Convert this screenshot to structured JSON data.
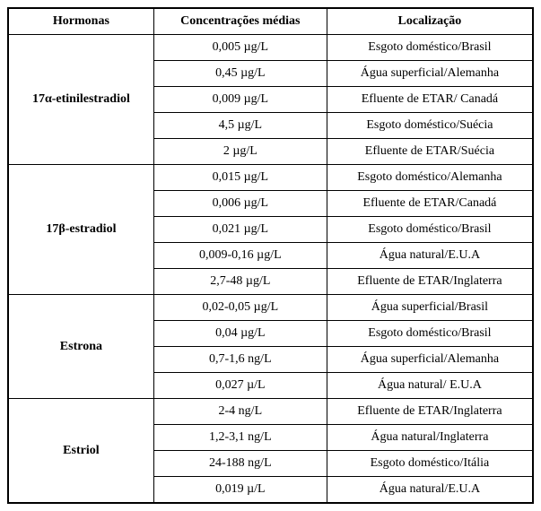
{
  "table": {
    "headers": {
      "hormone": "Hormonas",
      "concentration": "Concentrações médias",
      "location": "Localização"
    },
    "groups": [
      {
        "hormone": "17α-etinilestradiol",
        "rows": [
          {
            "concentration": "0,005 µg/L",
            "location": "Esgoto doméstico/Brasil"
          },
          {
            "concentration": "0,45 µg/L",
            "location": "Água superficial/Alemanha"
          },
          {
            "concentration": "0,009 µg/L",
            "location": "Efluente de ETAR/ Canadá"
          },
          {
            "concentration": "4,5 µg/L",
            "location": "Esgoto doméstico/Suécia"
          },
          {
            "concentration": "2 µg/L",
            "location": "Efluente de ETAR/Suécia"
          }
        ]
      },
      {
        "hormone": "17β-estradiol",
        "rows": [
          {
            "concentration": "0,015 µg/L",
            "location": "Esgoto doméstico/Alemanha"
          },
          {
            "concentration": "0,006 µg/L",
            "location": "Efluente de ETAR/Canadá"
          },
          {
            "concentration": "0,021 µg/L",
            "location": "Esgoto doméstico/Brasil"
          },
          {
            "concentration": "0,009-0,16 µg/L",
            "location": "Água natural/E.U.A"
          },
          {
            "concentration": "2,7-48 µg/L",
            "location": "Efluente de ETAR/Inglaterra"
          }
        ]
      },
      {
        "hormone": "Estrona",
        "rows": [
          {
            "concentration": "0,02-0,05 µg/L",
            "location": "Água superficial/Brasil"
          },
          {
            "concentration": "0,04 µg/L",
            "location": "Esgoto doméstico/Brasil"
          },
          {
            "concentration": "0,7-1,6 ng/L",
            "location": "Água superficial/Alemanha"
          },
          {
            "concentration": "0,027 µ/L",
            "location": "Água natural/ E.U.A"
          }
        ]
      },
      {
        "hormone": "Estriol",
        "rows": [
          {
            "concentration": "2-4 ng/L",
            "location": "Efluente de ETAR/Inglaterra"
          },
          {
            "concentration": "1,2-3,1 ng/L",
            "location": "Água natural/Inglaterra"
          },
          {
            "concentration": "24-188 ng/L",
            "location": "Esgoto doméstico/Itália"
          },
          {
            "concentration": "0,019 µ/L",
            "location": "Água natural/E.U.A"
          }
        ]
      }
    ],
    "styling": {
      "font_family": "Times New Roman",
      "header_fontsize": 14,
      "cell_fontsize": 14,
      "border_color": "#000000",
      "outer_border_width": 2,
      "inner_border_width": 1,
      "background_color": "#ffffff",
      "text_color": "#000000",
      "header_font_weight": "bold",
      "hormone_font_weight": "bold",
      "cell_padding": "6px 8px",
      "text_align": "center"
    }
  }
}
